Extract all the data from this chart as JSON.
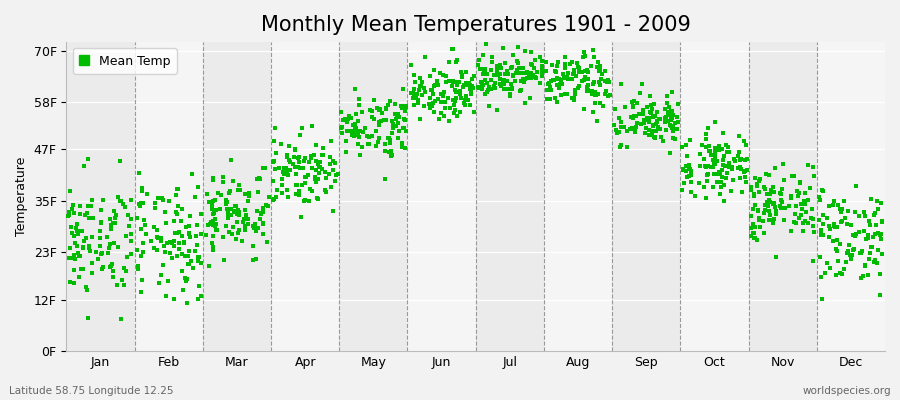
{
  "title": "Monthly Mean Temperatures 1901 - 2009",
  "ylabel": "Temperature",
  "bottom_left": "Latitude 58.75 Longitude 12.25",
  "bottom_right": "worldspecies.org",
  "legend_label": "Mean Temp",
  "dot_color": "#00bb00",
  "dot_size": 6,
  "bg_color": "#f2f2f2",
  "months": [
    "Jan",
    "Feb",
    "Mar",
    "Apr",
    "May",
    "Jun",
    "Jul",
    "Aug",
    "Sep",
    "Oct",
    "Nov",
    "Dec"
  ],
  "monthly_means_c": [
    -3.5,
    -3.8,
    0.2,
    5.5,
    11.5,
    16.0,
    18.0,
    17.0,
    12.0,
    6.5,
    1.0,
    -2.8
  ],
  "monthly_std_c": [
    3.8,
    3.8,
    2.8,
    2.2,
    2.0,
    1.8,
    1.6,
    1.8,
    1.8,
    2.0,
    2.5,
    3.2
  ],
  "n_years": 109,
  "yticks": [
    0,
    12,
    23,
    35,
    47,
    58,
    70
  ],
  "ytick_labels": [
    "0F",
    "12F",
    "23F",
    "35F",
    "47F",
    "58F",
    "70F"
  ],
  "ylim": [
    0,
    72
  ],
  "title_fontsize": 15,
  "axis_fontsize": 9,
  "label_fontsize": 9,
  "band_colors_odd": "#ebebeb",
  "band_colors_even": "#f5f5f5",
  "grid_color": "#ffffff",
  "dash_color": "#999999"
}
